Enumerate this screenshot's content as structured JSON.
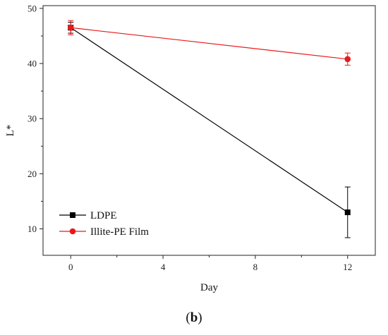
{
  "chart_data": {
    "type": "line",
    "xlabel": "Day",
    "ylabel": "L*",
    "x_ticks": [
      0,
      4,
      8,
      12
    ],
    "y_ticks": [
      10,
      20,
      30,
      40,
      50
    ],
    "xlim": [
      -1.2,
      13.2
    ],
    "ylim": [
      5.2,
      50.5
    ],
    "legend_position": "bottom-left",
    "series": [
      {
        "name": "LDPE",
        "color": "#000000",
        "marker": "square",
        "x": [
          0,
          12
        ],
        "y": [
          46.5,
          13.0
        ],
        "err": [
          1.0,
          4.6
        ]
      },
      {
        "name": "Illite-PE Film",
        "color": "#e8191b",
        "marker": "circle",
        "x": [
          0,
          12
        ],
        "y": [
          46.5,
          40.8
        ],
        "err": [
          1.3,
          1.1
        ]
      }
    ]
  },
  "caption": {
    "open": "(",
    "letter": "b",
    "close": ")"
  }
}
